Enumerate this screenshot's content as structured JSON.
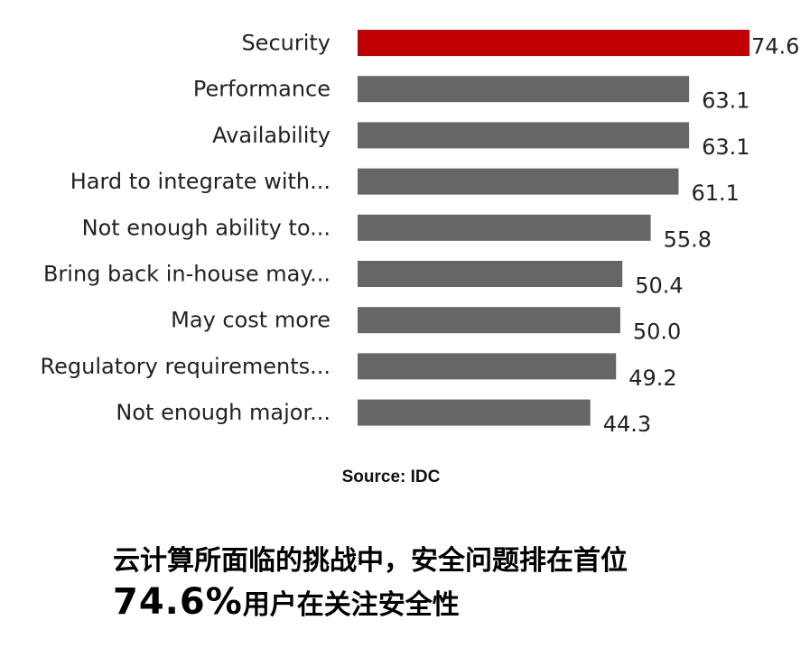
{
  "colors": {
    "highlight": "#c00000",
    "bar": "#666666"
  },
  "chart_data": {
    "type": "bar",
    "orientation": "horizontal",
    "categories": [
      "Security",
      "Performance",
      "Availability",
      "Hard to integrate with...",
      "Not enough ability to...",
      "Bring back in-house may...",
      "May cost more",
      "Regulatory requirements...",
      "Not enough major..."
    ],
    "values": [
      74.6,
      63.1,
      63.1,
      61.1,
      55.8,
      50.4,
      50.0,
      49.2,
      44.3
    ],
    "value_labels": [
      "74.6",
      "63.1",
      "63.1",
      "61.1",
      "55.8",
      "50.4",
      "50.0",
      "49.2",
      "44.3"
    ],
    "highlight_index": 0,
    "xlim": [
      0,
      74.6
    ],
    "grid": false,
    "legend": "none"
  },
  "source": "Source: IDC",
  "caption": {
    "line1": "云计算所面临的挑战中，安全问题排在首位",
    "line2_pct": "74.6%",
    "line2_rest": "用户在关注安全性"
  }
}
